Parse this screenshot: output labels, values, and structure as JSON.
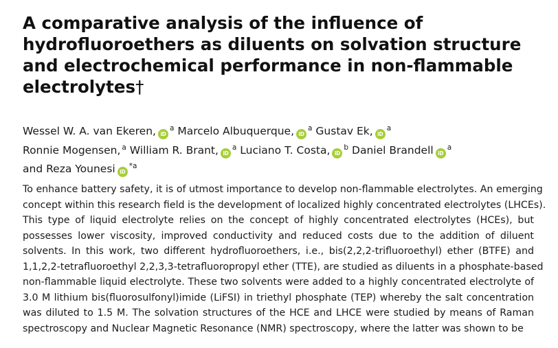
{
  "paper": {
    "title": "A comparative analysis of the influence of hydrofluoroethers as diluents on solvation structure and electrochemical performance in non-flammable electrolytes",
    "title_mark": "†",
    "authors": [
      {
        "name": "Wessel W. A. van Ekeren,",
        "orcid": true,
        "aff": "a"
      },
      {
        "name": "Marcelo Albuquerque,",
        "orcid": true,
        "aff": "a"
      },
      {
        "name": "Gustav Ek,",
        "orcid": true,
        "aff": "a"
      },
      {
        "name": "Ronnie Mogensen,",
        "orcid": false,
        "aff": "a"
      },
      {
        "name": "William R. Brant,",
        "orcid": true,
        "aff": "a"
      },
      {
        "name": "Luciano T. Costa,",
        "orcid": true,
        "aff": "b"
      },
      {
        "name": "Daniel Brandell",
        "orcid": true,
        "aff": "a"
      },
      {
        "name": "and Reza Younesi",
        "orcid": true,
        "aff": "*a"
      }
    ],
    "orcid_label": "iD",
    "abstract_lines": [
      "To enhance battery safety, it is of utmost importance to develop non-flammable electrolytes. An emerging",
      "concept within this research field is the development of localized highly concentrated electrolytes (LHCEs).",
      "This type of liquid electrolyte relies on the concept of highly concentrated electrolytes (HCEs), but",
      "possesses lower viscosity, improved conductivity and reduced costs due to the addition of diluent",
      "solvents. In this work, two different hydrofluoroethers, i.e., bis(2,2,2-trifluoroethyl) ether (BTFE) and",
      "1,1,2,2-tetrafluoroethyl 2,2,3,3-tetrafluoropropyl ether (TTE), are studied as diluents in a phosphate-based",
      "non-flammable liquid electrolyte. These two solvents were added to a highly concentrated electrolyte of",
      "3.0 M lithium bis(fluorosulfonyl)imide (LiFSI) in triethyl phosphate (TEP) whereby the salt concentration",
      "was diluted to 1.5 M. The solvation structures of the HCE and LHCE were studied by means of Raman",
      "spectroscopy and Nuclear Magnetic Resonance (NMR) spectroscopy, where the latter was shown to be"
    ]
  },
  "colors": {
    "orcid": "#a6ce39",
    "text": "#1a1a1a"
  }
}
